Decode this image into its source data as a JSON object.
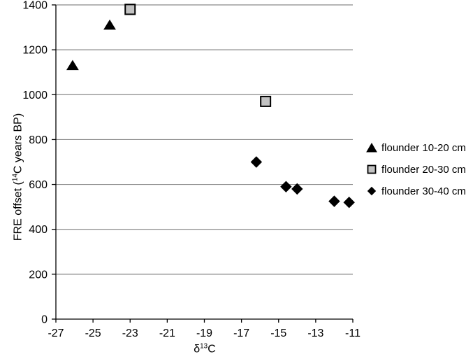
{
  "chart_data": {
    "type": "scatter",
    "title": "",
    "xlabel": {
      "prefix": "δ",
      "sup": "13",
      "suffix": "C"
    },
    "ylabel": {
      "prefix": "FRE offset (",
      "sup": "14",
      "suffix": "C years BP)"
    },
    "xlim": [
      -27,
      -11
    ],
    "ylim": [
      0,
      1400
    ],
    "x_ticks": [
      -27,
      -25,
      -23,
      -21,
      -19,
      -17,
      -15,
      -13,
      -11
    ],
    "y_ticks": [
      0,
      200,
      400,
      600,
      800,
      1000,
      1200,
      1400
    ],
    "grid": "horizontal",
    "legend_position": "right-outside",
    "colors": {
      "axis": "#000000",
      "gridline": "#8a8a8a",
      "text": "#000000",
      "background": "#ffffff",
      "square_fill": "#c2c2c2",
      "marker_black": "#000000"
    },
    "series": [
      {
        "name": "flounder 10-20 cm",
        "marker": "triangle",
        "fill": "#000000",
        "stroke": "#000000",
        "points": [
          [
            -26.1,
            1130
          ],
          [
            -24.1,
            1310
          ]
        ]
      },
      {
        "name": "flounder 20-30 cm",
        "marker": "square",
        "fill": "#c2c2c2",
        "stroke": "#000000",
        "points": [
          [
            -23.0,
            1380
          ],
          [
            -15.7,
            970
          ]
        ]
      },
      {
        "name": "flounder 30-40 cm",
        "marker": "diamond",
        "fill": "#000000",
        "stroke": "#000000",
        "points": [
          [
            -16.2,
            700
          ],
          [
            -14.6,
            590
          ],
          [
            -14.0,
            580
          ],
          [
            -12.0,
            525
          ],
          [
            -11.2,
            520
          ]
        ]
      }
    ]
  }
}
